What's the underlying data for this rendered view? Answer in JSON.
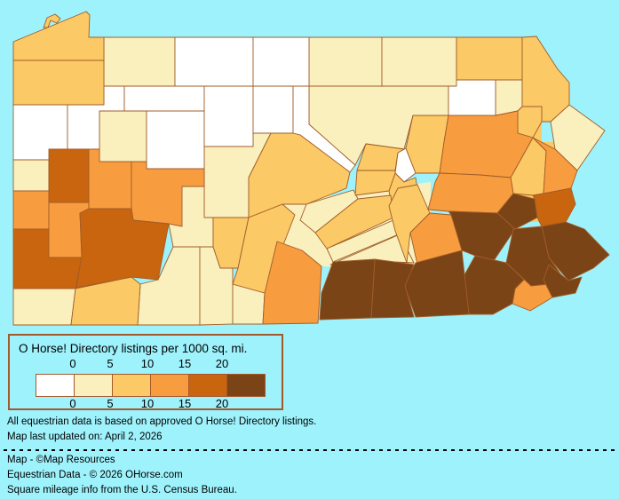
{
  "page": {
    "background": "#9EF2FC"
  },
  "legend": {
    "title": "O Horse! Directory listings per 1000 sq. mi.",
    "tick_labels": [
      "0",
      "5",
      "10",
      "15",
      "20"
    ],
    "classes": [
      {
        "label": "0",
        "color": "#FFFFFF"
      },
      {
        "label": "0-5",
        "color": "#FAF0BE"
      },
      {
        "label": "5-10",
        "color": "#FBC966"
      },
      {
        "label": "10-15",
        "color": "#F89C40"
      },
      {
        "label": "15-20",
        "color": "#C9650E"
      },
      {
        "label": "20+",
        "color": "#7A4417"
      }
    ],
    "border_color": "#A5582B"
  },
  "map": {
    "region": "Pennsylvania counties",
    "border_color": "#A15D28",
    "counties": [
      {
        "name": "Erie",
        "class": 2
      },
      {
        "name": "Crawford",
        "class": 2
      },
      {
        "name": "Mercer",
        "class": 0
      },
      {
        "name": "Lawrence",
        "class": 1
      },
      {
        "name": "Beaver",
        "class": 3
      },
      {
        "name": "Washington",
        "class": 4
      },
      {
        "name": "Greene",
        "class": 1
      },
      {
        "name": "Fayette",
        "class": 2
      },
      {
        "name": "Westmoreland",
        "class": 4
      },
      {
        "name": "Butler",
        "class": 4
      },
      {
        "name": "Allegheny",
        "class": 3
      },
      {
        "name": "Armstrong",
        "class": 3
      },
      {
        "name": "Indiana",
        "class": 3
      },
      {
        "name": "Venango",
        "class": 0
      },
      {
        "name": "Warren",
        "class": 1
      },
      {
        "name": "Forest",
        "class": 0
      },
      {
        "name": "Clarion",
        "class": 1
      },
      {
        "name": "Jefferson",
        "class": 0
      },
      {
        "name": "McKean",
        "class": 0
      },
      {
        "name": "Elk",
        "class": 0
      },
      {
        "name": "Cameron",
        "class": 0
      },
      {
        "name": "Potter",
        "class": 0
      },
      {
        "name": "Clinton",
        "class": 0
      },
      {
        "name": "Clearfield",
        "class": 1
      },
      {
        "name": "Centre",
        "class": 2
      },
      {
        "name": "Cambria",
        "class": 1
      },
      {
        "name": "Somerset",
        "class": 1
      },
      {
        "name": "Bedford",
        "class": 1
      },
      {
        "name": "Blair",
        "class": 2
      },
      {
        "name": "Huntingdon",
        "class": 2
      },
      {
        "name": "Fulton",
        "class": 1
      },
      {
        "name": "Franklin",
        "class": 3
      },
      {
        "name": "Tioga",
        "class": 1
      },
      {
        "name": "Bradford",
        "class": 1
      },
      {
        "name": "Susquehanna",
        "class": 2
      },
      {
        "name": "Wayne",
        "class": 2
      },
      {
        "name": "Lackawanna",
        "class": 2
      },
      {
        "name": "Pike",
        "class": 1
      },
      {
        "name": "Lycoming",
        "class": 1
      },
      {
        "name": "Sullivan",
        "class": 0
      },
      {
        "name": "Wyoming",
        "class": 1
      },
      {
        "name": "Luzerne",
        "class": 3
      },
      {
        "name": "Columbia",
        "class": 2
      },
      {
        "name": "Montour",
        "class": 0
      },
      {
        "name": "Northumberland",
        "class": 2
      },
      {
        "name": "Union",
        "class": 2
      },
      {
        "name": "Snyder",
        "class": 2
      },
      {
        "name": "Mifflin",
        "class": 1
      },
      {
        "name": "Juniata",
        "class": 2
      },
      {
        "name": "Perry",
        "class": 1
      },
      {
        "name": "Cumberland",
        "class": 1
      },
      {
        "name": "Dauphin",
        "class": 2
      },
      {
        "name": "Lebanon",
        "class": 3
      },
      {
        "name": "Schuylkill",
        "class": 3
      },
      {
        "name": "Carbon",
        "class": 2
      },
      {
        "name": "Monroe",
        "class": 3
      },
      {
        "name": "Northampton",
        "class": 4
      },
      {
        "name": "Lehigh",
        "class": 5
      },
      {
        "name": "Berks",
        "class": 5
      },
      {
        "name": "Bucks",
        "class": 5
      },
      {
        "name": "Montgomery",
        "class": 5
      },
      {
        "name": "Philadelphia",
        "class": 5
      },
      {
        "name": "Delaware",
        "class": 3
      },
      {
        "name": "Chester",
        "class": 5
      },
      {
        "name": "Lancaster",
        "class": 5
      },
      {
        "name": "York",
        "class": 5
      },
      {
        "name": "Adams",
        "class": 5
      }
    ]
  },
  "notes": {
    "line1": "All equestrian data is based on approved O Horse! Directory listings.",
    "line2": "Map last updated on: April 2, 2026"
  },
  "credits": {
    "map": "Map - ©Map Resources",
    "data": "Equestrian Data - © 2026 OHorse.com",
    "mileage": "Square mileage info from the U.S. Census Bureau."
  }
}
